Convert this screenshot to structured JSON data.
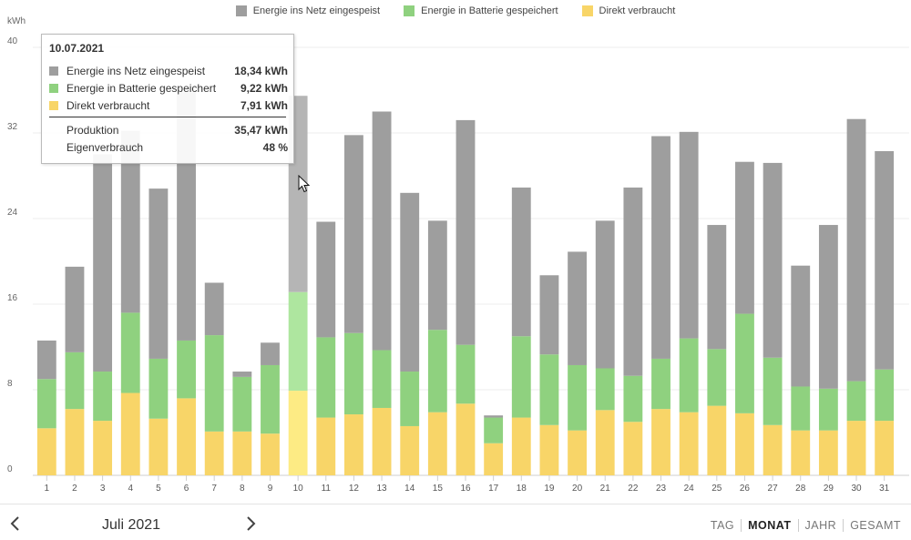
{
  "legend": [
    {
      "label": "Energie ins Netz eingespeist",
      "color": "#9e9e9e"
    },
    {
      "label": "Energie in Batterie gespeichert",
      "color": "#8fd17f"
    },
    {
      "label": "Direkt verbraucht",
      "color": "#f8d568"
    }
  ],
  "chart_data": {
    "type": "bar",
    "stacked": true,
    "ylabel": "kWh",
    "ylim": [
      0,
      40
    ],
    "yticks": [
      0,
      8,
      16,
      24,
      32,
      40
    ],
    "grid": true,
    "legend_position": "top",
    "categories": [
      "1",
      "2",
      "3",
      "4",
      "5",
      "6",
      "7",
      "8",
      "9",
      "10",
      "11",
      "12",
      "13",
      "14",
      "15",
      "16",
      "17",
      "18",
      "19",
      "20",
      "21",
      "22",
      "23",
      "24",
      "25",
      "26",
      "27",
      "28",
      "29",
      "30",
      "31"
    ],
    "series": [
      {
        "name": "Direkt verbraucht",
        "color": "#f8d568",
        "highlight_color": "#fdeb84",
        "values": [
          4.4,
          6.2,
          5.1,
          7.7,
          5.3,
          7.2,
          4.1,
          4.1,
          3.9,
          7.91,
          5.4,
          5.7,
          6.3,
          4.6,
          5.9,
          6.7,
          3.0,
          5.4,
          4.7,
          4.2,
          6.1,
          5.0,
          6.2,
          5.9,
          6.5,
          5.8,
          4.7,
          4.2,
          4.2,
          5.1,
          5.1
        ]
      },
      {
        "name": "Energie in Batterie gespeichert",
        "color": "#8fd17f",
        "highlight_color": "#aee69f",
        "values": [
          4.6,
          5.3,
          4.6,
          7.5,
          5.6,
          5.4,
          9.0,
          5.1,
          6.4,
          9.22,
          7.5,
          7.6,
          5.4,
          5.1,
          7.7,
          5.5,
          2.4,
          7.6,
          6.6,
          6.1,
          3.9,
          4.3,
          4.7,
          6.9,
          5.3,
          9.3,
          6.3,
          4.1,
          3.9,
          3.7,
          4.8
        ]
      },
      {
        "name": "Energie ins Netz eingespeist",
        "color": "#9e9e9e",
        "highlight_color": "#b5b5b5",
        "values": [
          3.6,
          8.0,
          20.3,
          17.0,
          15.9,
          23.2,
          4.9,
          0.5,
          2.1,
          18.34,
          10.8,
          18.5,
          22.3,
          16.7,
          10.2,
          21.0,
          0.2,
          13.9,
          7.4,
          10.6,
          13.8,
          17.6,
          20.8,
          19.3,
          11.6,
          14.2,
          18.2,
          11.3,
          15.3,
          24.5,
          20.4
        ]
      }
    ],
    "highlight_index": 9
  },
  "tooltip": {
    "date": "10.07.2021",
    "rows": [
      {
        "label": "Energie ins Netz eingespeist",
        "value": "18,34 kWh",
        "color": "#9e9e9e"
      },
      {
        "label": "Energie in Batterie gespeichert",
        "value": "9,22 kWh",
        "color": "#8fd17f"
      },
      {
        "label": "Direkt verbraucht",
        "value": "7,91 kWh",
        "color": "#f8d568"
      }
    ],
    "summary": [
      {
        "label": "Produktion",
        "value": "35,47 kWh"
      },
      {
        "label": "Eigenverbrauch",
        "value": "48 %"
      }
    ]
  },
  "footer": {
    "period": "Juli 2021",
    "prev_icon": "chevron-left-icon",
    "next_icon": "chevron-right-icon",
    "tabs": [
      {
        "label": "TAG",
        "active": false
      },
      {
        "label": "MONAT",
        "active": true
      },
      {
        "label": "JAHR",
        "active": false
      },
      {
        "label": "GESAMT",
        "active": false
      }
    ]
  }
}
